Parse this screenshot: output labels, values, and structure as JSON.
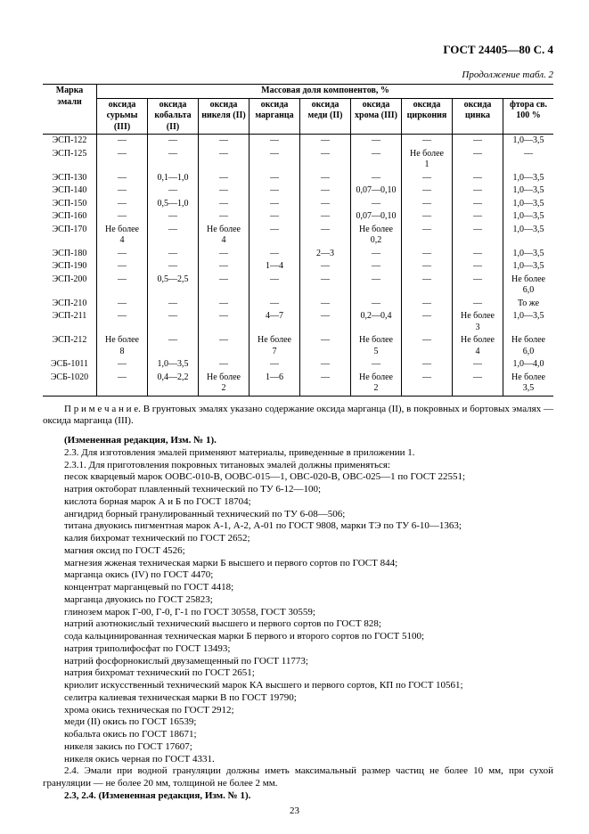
{
  "header": "ГОСТ 24405—80 С. 4",
  "caption": "Продолжение табл. 2",
  "tableHead": {
    "marka": "Марка эмали",
    "group": "Массовая доля компонентов, %",
    "cols": [
      "оксида сурьмы (III)",
      "оксида кобальта (II)",
      "оксида никеля (II)",
      "оксида марганца",
      "оксида меди (II)",
      "оксида хрома (III)",
      "оксида циркония",
      "оксида цинка",
      "фтора св. 100 %"
    ]
  },
  "rows": [
    {
      "m": "ЭСП-122",
      "c": [
        "—",
        "—",
        "—",
        "—",
        "—",
        "—",
        "—",
        "—",
        "1,0—3,5"
      ]
    },
    {
      "m": "ЭСП-125",
      "c": [
        "—",
        "—",
        "—",
        "—",
        "—",
        "—",
        "Не более 1",
        "—",
        "—"
      ]
    },
    {
      "m": "ЭСП-130",
      "c": [
        "—",
        "0,1—1,0",
        "—",
        "—",
        "—",
        "—",
        "—",
        "—",
        "1,0—3,5"
      ]
    },
    {
      "m": "ЭСП-140",
      "c": [
        "—",
        "—",
        "—",
        "—",
        "—",
        "0,07—0,10",
        "—",
        "—",
        "1,0—3,5"
      ]
    },
    {
      "m": "ЭСП-150",
      "c": [
        "—",
        "0,5—1,0",
        "—",
        "—",
        "—",
        "—",
        "—",
        "—",
        "1,0—3,5"
      ]
    },
    {
      "m": "ЭСП-160",
      "c": [
        "—",
        "—",
        "—",
        "—",
        "—",
        "0,07—0,10",
        "—",
        "—",
        "1,0—3,5"
      ]
    },
    {
      "m": "ЭСП-170",
      "c": [
        "Не более 4",
        "—",
        "Не более 4",
        "—",
        "—",
        "Не более 0,2",
        "—",
        "—",
        "1,0—3,5"
      ]
    },
    {
      "m": "ЭСП-180",
      "c": [
        "—",
        "—",
        "—",
        "—",
        "2—3",
        "—",
        "—",
        "—",
        "1,0—3,5"
      ]
    },
    {
      "m": "ЭСП-190",
      "c": [
        "—",
        "—",
        "—",
        "1—4",
        "—",
        "—",
        "—",
        "—",
        "1,0—3,5"
      ]
    },
    {
      "m": "ЭСП-200",
      "c": [
        "—",
        "0,5—2,5",
        "—",
        "—",
        "—",
        "—",
        "—",
        "—",
        "Не более 6,0"
      ]
    },
    {
      "m": "ЭСП-210",
      "c": [
        "—",
        "—",
        "—",
        "—",
        "—",
        "—",
        "—",
        "—",
        "То же"
      ]
    },
    {
      "m": "ЭСП-211",
      "c": [
        "—",
        "—",
        "—",
        "4—7",
        "—",
        "0,2—0,4",
        "—",
        "Не более 3",
        "1,0—3,5"
      ]
    },
    {
      "m": "ЭСП-212",
      "c": [
        "Не более 8",
        "—",
        "—",
        "Не более 7",
        "—",
        "Не более 5",
        "—",
        "Не более 4",
        "Не более 6,0"
      ]
    },
    {
      "m": "ЭСБ-1011",
      "c": [
        "—",
        "1,0—3,5",
        "—",
        "—",
        "—",
        "—",
        "—",
        "—",
        "1,0—4,0"
      ]
    },
    {
      "m": "ЭСБ-1020",
      "c": [
        "—",
        "0,4—2,2",
        "Не более 2",
        "1—6",
        "—",
        "Не более 2",
        "—",
        "—",
        "Не более 3,5"
      ]
    }
  ],
  "note": "П р и м е ч а н и е.  В грунтовых эмалях указано содержание оксида марганца (II), в покровных и бортовых эмалях — оксида марганца (III).",
  "paragraphs": [
    {
      "cls": "indent",
      "t": "(Измененная редакция, Изм. № 1).",
      "bold": true
    },
    {
      "cls": "indent",
      "t": "2.3. Для изготовления эмалей применяют материалы, приведенные в приложении 1."
    },
    {
      "cls": "indent",
      "t": "2.3.1. Для приготовления покровных титановых эмалей должны применяться:"
    },
    {
      "cls": "list-line",
      "t": "песок кварцевый марок ООВС-010-В, ООВС-015—1, ОВС-020-В, ОВС-025—1 по ГОСТ 22551;"
    },
    {
      "cls": "list-line",
      "t": "натрия октоборат плавленный технический по ТУ 6-12—100;"
    },
    {
      "cls": "list-line",
      "t": "кислота борная марок А и Б по ГОСТ 18704;"
    },
    {
      "cls": "list-line",
      "t": "ангидрид борный гранулированный технический по ТУ 6-08—506;"
    },
    {
      "cls": "list-line",
      "t": "титана двуокись пигментная марок А-1, А-2, А-01 по ГОСТ 9808, марки ТЭ по ТУ 6-10—1363;"
    },
    {
      "cls": "list-line",
      "t": "калия бихромат технический по ГОСТ 2652;"
    },
    {
      "cls": "list-line",
      "t": "магния оксид по ГОСТ 4526;"
    },
    {
      "cls": "list-line",
      "t": "магнезия жженая техническая марки Б высшего и первого сортов по ГОСТ 844;"
    },
    {
      "cls": "list-line",
      "t": "марганца окись (IV) по ГОСТ 4470;"
    },
    {
      "cls": "list-line",
      "t": "концентрат марганцевый по ГОСТ 4418;"
    },
    {
      "cls": "list-line",
      "t": "марганца двуокись по ГОСТ 25823;"
    },
    {
      "cls": "list-line",
      "t": "глинозем марок Г-00, Г-0, Г-1 по ГОСТ 30558, ГОСТ 30559;"
    },
    {
      "cls": "list-line",
      "t": "натрий азотнокислый технический высшего и первого сортов по ГОСТ 828;"
    },
    {
      "cls": "list-line",
      "t": "сода кальцинированная техническая марки Б первого и второго сортов по ГОСТ 5100;"
    },
    {
      "cls": "list-line",
      "t": "натрия триполифосфат по ГОСТ 13493;"
    },
    {
      "cls": "list-line",
      "t": "натрий фосфорнокислый двузамещенный по ГОСТ 11773;"
    },
    {
      "cls": "list-line",
      "t": "натрия бихромат технический по ГОСТ 2651;"
    },
    {
      "cls": "list-line",
      "t": "криолит искусственный технический марок КА высшего и первого сортов, КП по ГОСТ 10561;"
    },
    {
      "cls": "list-line",
      "t": "селитра калиевая техническая марки В по ГОСТ 19790;"
    },
    {
      "cls": "list-line",
      "t": "хрома окись техническая по ГОСТ 2912;"
    },
    {
      "cls": "list-line",
      "t": "меди (II) окись по ГОСТ 16539;"
    },
    {
      "cls": "list-line",
      "t": "кобальта окись по ГОСТ 18671;"
    },
    {
      "cls": "list-line",
      "t": "никеля закись по ГОСТ 17607;"
    },
    {
      "cls": "list-line",
      "t": "никеля окись черная по ГОСТ 4331."
    },
    {
      "cls": "indent",
      "t": "2.4. Эмали при водной грануляции должны иметь максимальный размер частиц не более 10 мм, при сухой грануляции — не более 20 мм, толщиной не более 2 мм."
    },
    {
      "cls": "indent",
      "t": "2.3, 2.4. (Измененная редакция, Изм. № 1).",
      "bold": true
    }
  ],
  "pageNum": "23"
}
